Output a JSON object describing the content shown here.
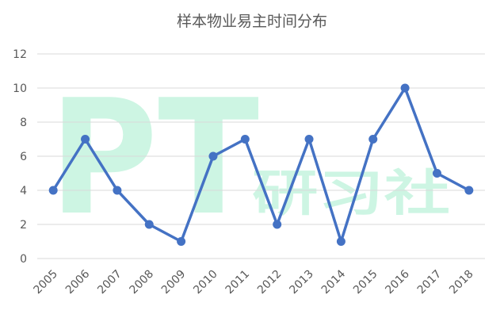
{
  "watermark": {
    "logo": "PT",
    "text": "研习社"
  },
  "chart_data": {
    "type": "line",
    "title": "样本物业易主时间分布",
    "xlabel": "",
    "ylabel": "",
    "categories": [
      "2005",
      "2006",
      "2007",
      "2008",
      "2009",
      "2010",
      "2011",
      "2012",
      "2013",
      "2014",
      "2015",
      "2016",
      "2017",
      "2018"
    ],
    "series": [
      {
        "values": [
          4,
          7,
          4,
          2,
          1,
          6,
          7,
          2,
          7,
          1,
          7,
          10,
          5,
          4
        ]
      }
    ],
    "ylim": [
      0,
      12
    ],
    "yticks": [
      "0",
      "2",
      "4",
      "6",
      "8",
      "10",
      "12"
    ],
    "grid": true,
    "legend": "none",
    "color": "#4472c4"
  }
}
